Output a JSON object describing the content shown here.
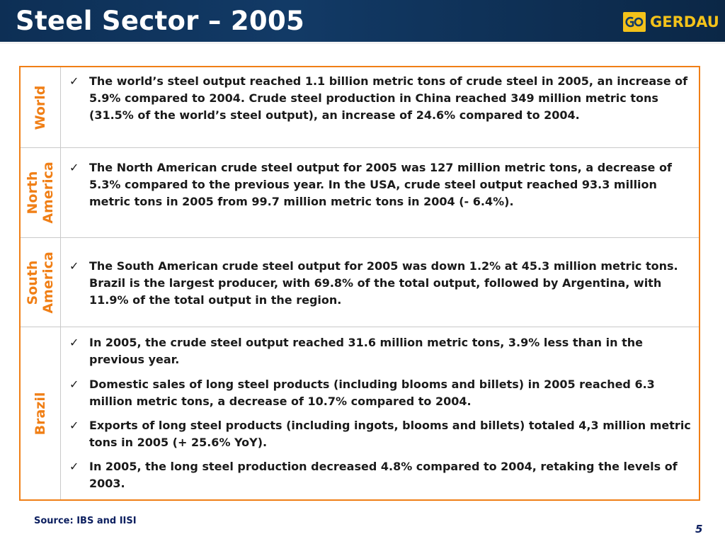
{
  "header": {
    "title": "Steel Sector – 2005",
    "logo_text": "GERDAU",
    "logo_icon": "gerdau-g-logo-icon"
  },
  "rows": [
    {
      "label_lines": [
        "World"
      ],
      "bullets": [
        "The world’s steel output reached 1.1 billion metric tons of crude steel in 2005, an increase of 5.9% compared to 2004. Crude steel production in China reached 349 million metric tons (31.5% of the world’s steel output), an increase of 24.6% compared to 2004."
      ]
    },
    {
      "label_lines": [
        "North",
        "America"
      ],
      "bullets": [
        "The North American crude steel output for 2005 was 127 million metric tons, a decrease of 5.3% compared to the previous year. In the USA, crude steel output reached 93.3 million metric tons in 2005 from 99.7 million metric tons in 2004 (- 6.4%)."
      ]
    },
    {
      "label_lines": [
        "South",
        "America"
      ],
      "bullets": [
        "The South American crude steel output for 2005 was down 1.2% at 45.3 million metric tons. Brazil is the largest producer, with 69.8% of the total output, followed by Argentina, with 11.9% of the total output in the region."
      ]
    },
    {
      "label_lines": [
        "Brazil"
      ],
      "bullets": [
        "In 2005, the crude steel output reached 31.6 million metric tons, 3.9% less than in the previous year.",
        "Domestic sales of long steel products (including blooms and billets) in 2005 reached 6.3 million metric tons, a decrease of 10.7% compared to 2004.",
        "Exports of long steel products (including ingots, blooms and billets) totaled 4,3 million metric tons in 2005 (+ 25.6% YoY).",
        "In 2005, the long steel production decreased 4.8% compared to 2004, retaking the levels of 2003."
      ]
    }
  ],
  "check_glyph": "✓",
  "footer": {
    "source": "Source: IBS and IISI",
    "page_number": "5"
  },
  "colors": {
    "title_bar": "#123a66",
    "accent_orange": "#f07f16",
    "logo_yellow": "#f3c21a",
    "footer_text": "#0d2060"
  }
}
